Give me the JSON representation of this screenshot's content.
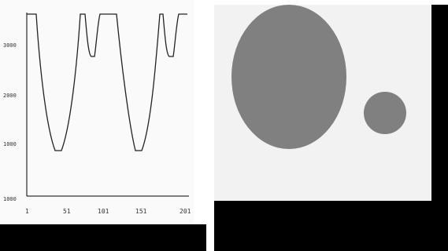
{
  "chart_data": {
    "type": "line",
    "x_ticks": [
      "1",
      "51",
      "101",
      "151",
      "201"
    ],
    "y_ticks": [
      "3000",
      "2000",
      "1000",
      "1000"
    ],
    "series": [
      {
        "values": "profile curve with two deep valleys and two shallow dips"
      }
    ]
  },
  "right_image": {
    "background_color": "#f2f2f2",
    "shape_color": "#808080",
    "shapes": [
      "large-ellipse",
      "small-circle"
    ]
  }
}
